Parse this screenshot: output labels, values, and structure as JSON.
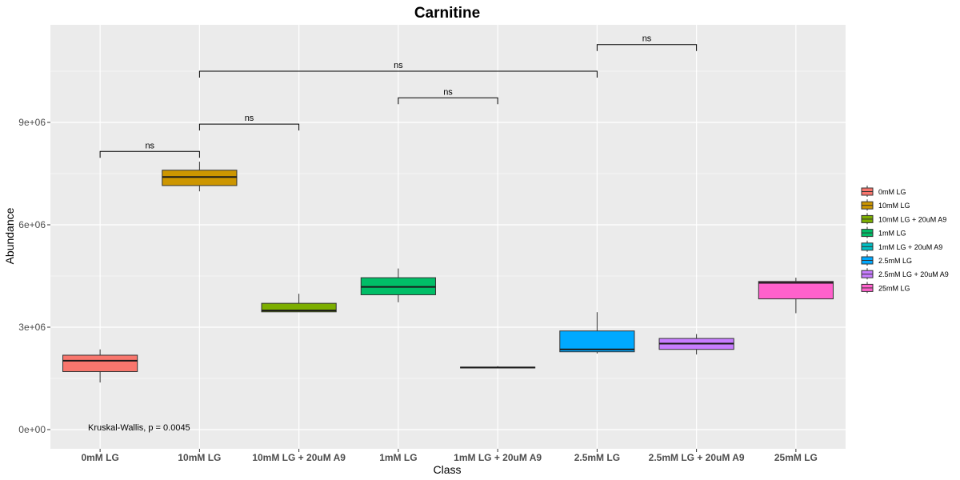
{
  "chart_data": {
    "type": "box",
    "title": "Carnitine",
    "xlabel": "Class",
    "ylabel": "Abundance",
    "ylim": [
      -400000,
      12000000
    ],
    "yticks": [
      0,
      3000000,
      6000000,
      9000000
    ],
    "ytick_labels": [
      "0e+00",
      "3e+06",
      "6e+06",
      "9e+06"
    ],
    "grid": true,
    "legend_position": "right",
    "categories": [
      "0mM LG",
      "10mM LG",
      "10mM LG + 20uM A9",
      "1mM LG",
      "1mM LG + 20uM A9",
      "2.5mM LG",
      "2.5mM LG + 20uM A9",
      "25mM LG"
    ],
    "colors": [
      "#F8766D",
      "#CD9600",
      "#7CAE00",
      "#00BE67",
      "#00BFC4",
      "#00A9FF",
      "#C77CFF",
      "#FF61CC"
    ],
    "boxes": [
      {
        "lower_whisker": 1380000,
        "q1": 1700000,
        "median": 2020000,
        "q3": 2180000,
        "upper_whisker": 2350000
      },
      {
        "lower_whisker": 6980000,
        "q1": 7150000,
        "median": 7400000,
        "q3": 7600000,
        "upper_whisker": 7850000
      },
      {
        "lower_whisker": 3450000,
        "q1": 3450000,
        "median": 3490000,
        "q3": 3700000,
        "upper_whisker": 3980000
      },
      {
        "lower_whisker": 3730000,
        "q1": 3950000,
        "median": 4180000,
        "q3": 4450000,
        "upper_whisker": 4720000
      },
      {
        "lower_whisker": 1800000,
        "q1": 1810000,
        "median": 1820000,
        "q3": 1830000,
        "upper_whisker": 1860000
      },
      {
        "lower_whisker": 2230000,
        "q1": 2280000,
        "median": 2350000,
        "q3": 2890000,
        "upper_whisker": 3440000
      },
      {
        "lower_whisker": 2200000,
        "q1": 2350000,
        "median": 2520000,
        "q3": 2670000,
        "upper_whisker": 2800000
      },
      {
        "lower_whisker": 3410000,
        "q1": 3830000,
        "median": 4300000,
        "q3": 4340000,
        "upper_whisker": 4450000
      }
    ],
    "comparisons": [
      {
        "from": "0mM LG",
        "to": "10mM LG",
        "y": 8150000,
        "label": "ns"
      },
      {
        "from": "10mM LG",
        "to": "10mM LG + 20uM A9",
        "y": 8950000,
        "label": "ns"
      },
      {
        "from": "1mM LG",
        "to": "1mM LG + 20uM A9",
        "y": 9720000,
        "label": "ns"
      },
      {
        "from": "10mM LG",
        "to": "2.5mM LG",
        "y": 10500000,
        "label": "ns"
      },
      {
        "from": "2.5mM LG",
        "to": "2.5mM LG + 20uM A9",
        "y": 11280000,
        "label": "ns"
      }
    ],
    "annotation": "Kruskal-Wallis, p = 0.0045",
    "legend": [
      "0mM LG",
      "10mM LG",
      "10mM LG + 20uM A9",
      "1mM LG",
      "1mM LG + 20uM A9",
      "2.5mM LG",
      "2.5mM LG + 20uM A9",
      "25mM LG"
    ]
  }
}
